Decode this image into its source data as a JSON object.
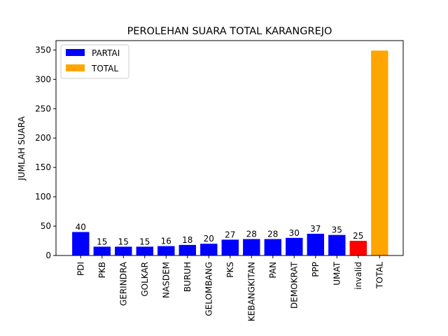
{
  "chart_data": {
    "type": "bar",
    "title": "PEROLEHAN SUARA TOTAL KARANGREJO",
    "xlabel": "",
    "ylabel": "JUMLAH SUARA",
    "ylim": [
      0,
      366
    ],
    "yticks": [
      0,
      50,
      100,
      150,
      200,
      250,
      300,
      350
    ],
    "grid": false,
    "legend_position": "top-left",
    "legend": [
      {
        "label": "PARTAI",
        "color": "#0000ff"
      },
      {
        "label": "TOTAL",
        "color": "#ffa500"
      }
    ],
    "categories": [
      "PDI",
      "PKB",
      "GERINDRA",
      "GOLKAR",
      "NASDEM",
      "BURUH",
      "GELOMBANG",
      "PKS",
      "KEBANGKITAN",
      "PAN",
      "DEMOKRAT",
      "PPP",
      "UMAT",
      "invalid",
      "TOTAL"
    ],
    "values": [
      40,
      15,
      15,
      15,
      16,
      18,
      20,
      27,
      28,
      28,
      30,
      37,
      35,
      25,
      349
    ],
    "data_labels": [
      "40",
      "15",
      "15",
      "15",
      "16",
      "18",
      "20",
      "27",
      "28",
      "28",
      "30",
      "37",
      "35",
      "25",
      ""
    ],
    "colors": [
      "#0000ff",
      "#0000ff",
      "#0000ff",
      "#0000ff",
      "#0000ff",
      "#0000ff",
      "#0000ff",
      "#0000ff",
      "#0000ff",
      "#0000ff",
      "#0000ff",
      "#0000ff",
      "#0000ff",
      "#ff0000",
      "#ffa500"
    ]
  }
}
